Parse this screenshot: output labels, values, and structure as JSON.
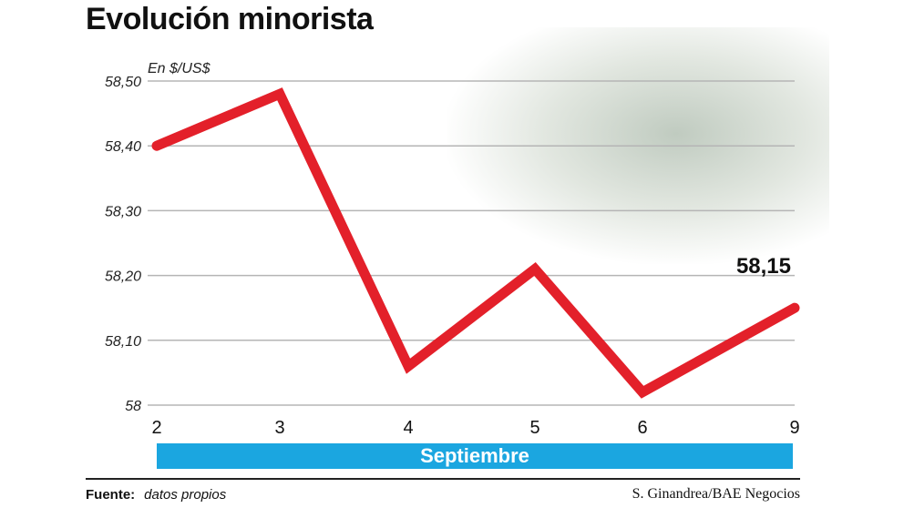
{
  "chart_data": {
    "type": "line",
    "title": "Evolución minorista",
    "ylabel": "En $/US$",
    "xlabel": "Septiembre",
    "categories": [
      "2",
      "3",
      "4",
      "5",
      "6",
      "9"
    ],
    "values": [
      58.4,
      58.48,
      58.06,
      58.21,
      58.02,
      58.15
    ],
    "ylim": [
      58,
      58.5
    ],
    "yticks": [
      "58",
      "58,10",
      "58,20",
      "58,30",
      "58,40",
      "58,50"
    ],
    "grid": true,
    "line_color": "#e3202a",
    "annotation": "58,15"
  },
  "footer": {
    "source_label": "Fuente:",
    "source_text": "datos propios",
    "credit": "S. Ginandrea/BAE Negocios"
  },
  "colors": {
    "month_bar": "#1ba6e0"
  }
}
